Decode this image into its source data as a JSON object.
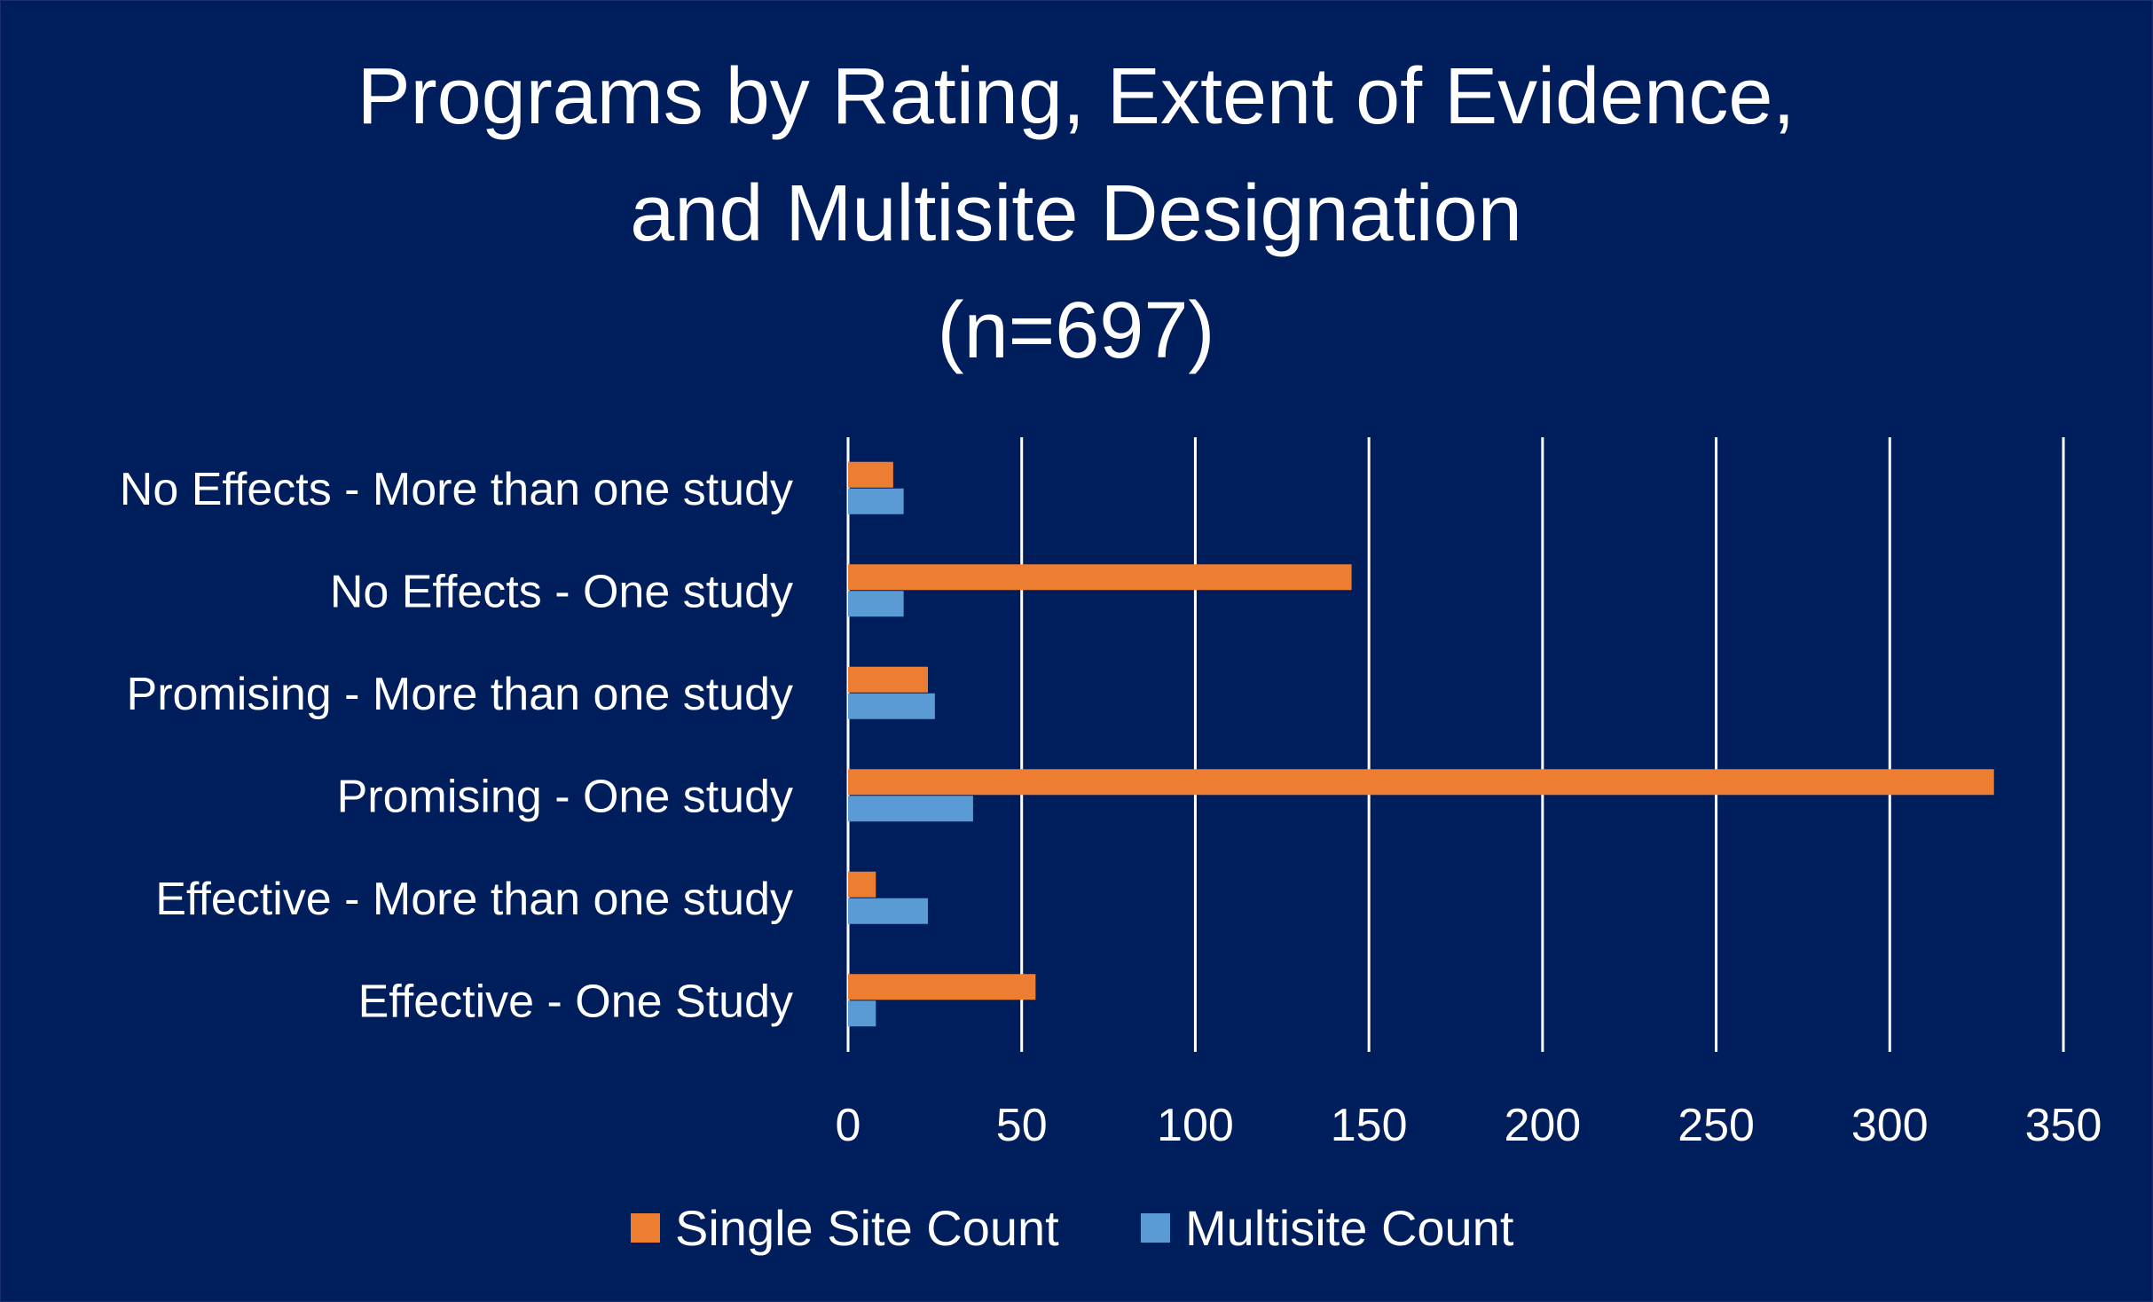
{
  "chart_data": {
    "type": "bar",
    "orientation": "horizontal",
    "title": [
      "Programs by Rating, Extent of Evidence,",
      "and Multisite Designation",
      "(n=697)"
    ],
    "categories": [
      "No Effects - More than one study",
      "No Effects - One study",
      "Promising - More than one study",
      "Promising - One study",
      "Effective - More than one study",
      "Effective - One Study"
    ],
    "series": [
      {
        "name": "Single Site Count",
        "color": "#ed7d31",
        "values": [
          13,
          145,
          23,
          330,
          8,
          54
        ]
      },
      {
        "name": "Multisite Count",
        "color": "#5b9bd5",
        "values": [
          16,
          16,
          25,
          36,
          23,
          8
        ]
      }
    ],
    "xlim": [
      0,
      350
    ],
    "ticks": [
      "0",
      "50",
      "100",
      "150",
      "200",
      "250",
      "300",
      "350"
    ],
    "tick_values": [
      0,
      50,
      100,
      150,
      200,
      250,
      300,
      350
    ],
    "grid": true,
    "legend": "bottom",
    "background": "#001e5c",
    "text_color": "#ffffff"
  }
}
